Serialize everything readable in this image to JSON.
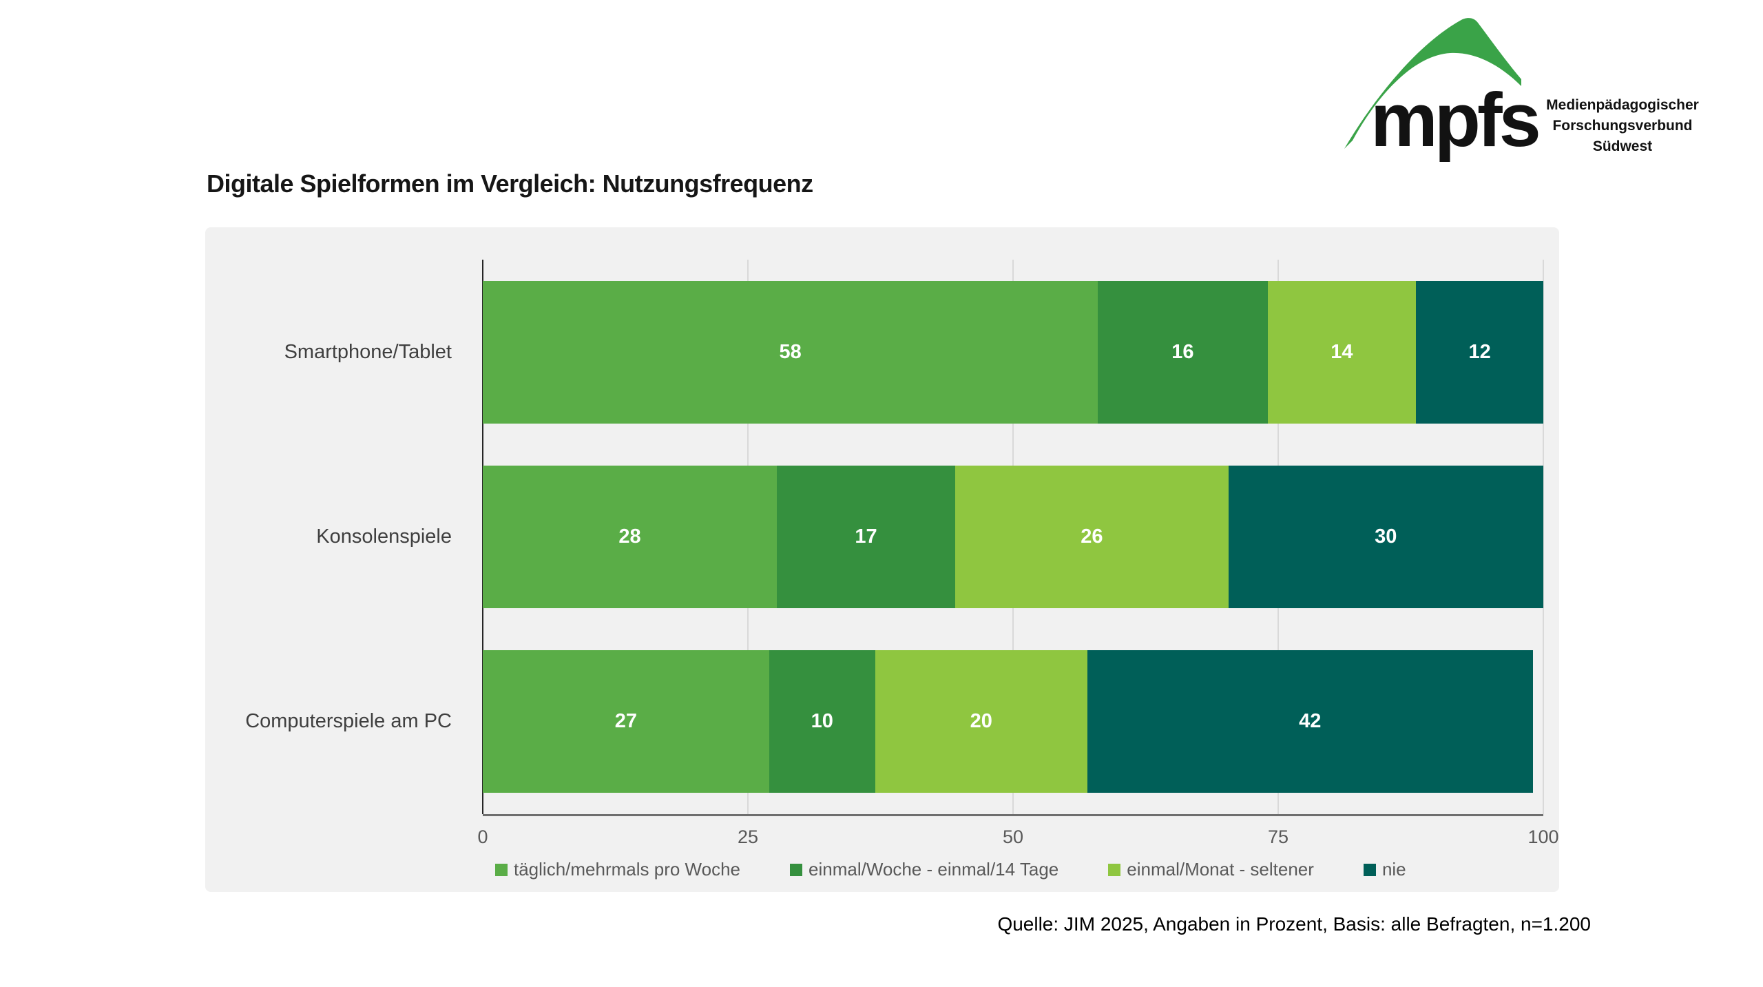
{
  "logo": {
    "wordmark": "mpfs",
    "org_lines": [
      "Medienpädagogischer",
      "Forschungsverbund",
      "Südwest"
    ],
    "swoosh_color": "#3aa348"
  },
  "title": "Digitale Spielformen im Vergleich: Nutzungsfrequenz",
  "source": "Quelle: JIM 2025, Angaben in Prozent, Basis: alle Befragten, n=1.200",
  "colors": {
    "panel_background": "#f1f1f1",
    "gridline": "#d9d9d9",
    "y_axis_line": "#262626",
    "x_axis_line": "#6e6e6e",
    "category_label": "#3f3f3f",
    "tick_label": "#595959",
    "legend_label": "#595959",
    "value_label": "#ffffff"
  },
  "chart_data": {
    "type": "bar",
    "orientation": "horizontal",
    "stacked": true,
    "title": "Digitale Spielformen im Vergleich: Nutzungsfrequenz",
    "categories": [
      "Smartphone/Tablet",
      "Konsolenspiele",
      "Computerspiele am PC"
    ],
    "series": [
      {
        "name": "täglich/mehrmals pro Woche",
        "color": "#5aad47",
        "values": [
          58,
          28,
          27
        ]
      },
      {
        "name": "einmal/Woche - einmal/14 Tage",
        "color": "#35903e",
        "values": [
          16,
          17,
          10
        ]
      },
      {
        "name": "einmal/Monat - seltener",
        "color": "#8fc640",
        "values": [
          14,
          26,
          20
        ]
      },
      {
        "name": "nie",
        "color": "#005f58",
        "values": [
          12,
          30,
          42
        ]
      }
    ],
    "x_ticks": [
      0,
      25,
      50,
      75,
      100
    ],
    "xlim": [
      0,
      100
    ],
    "unit": "Prozent",
    "grid": true,
    "legend_position": "bottom"
  }
}
